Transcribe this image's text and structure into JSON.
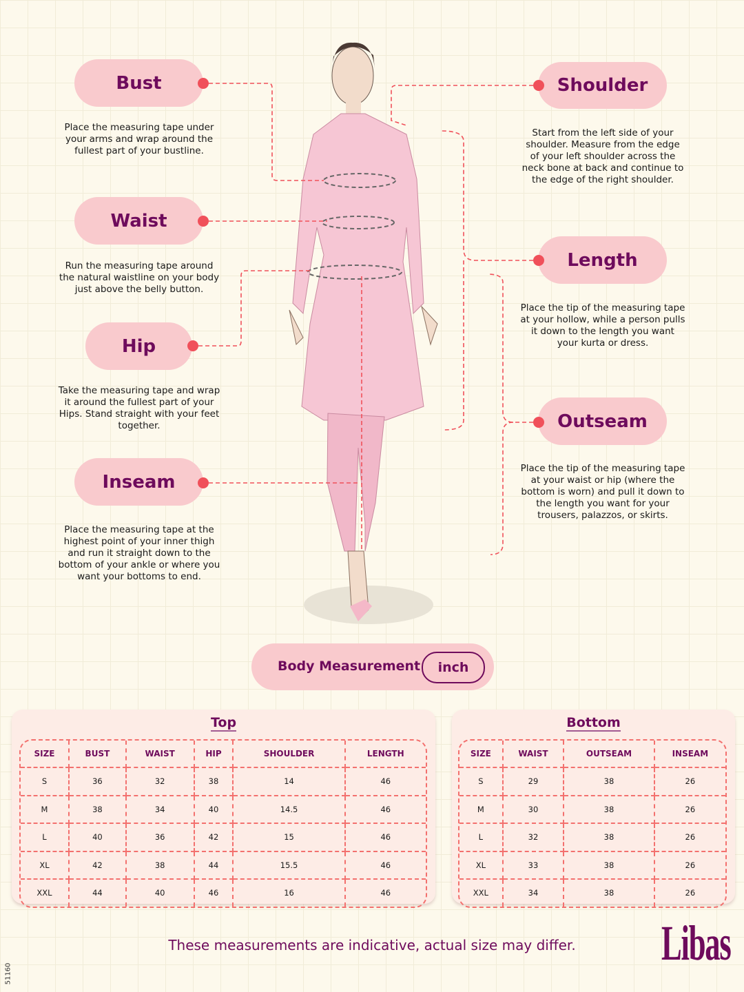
{
  "measurements": {
    "bust": {
      "label": "Bust",
      "desc": "Place the measuring tape under your arms and wrap around the fullest part of your bustline."
    },
    "waist": {
      "label": "Waist",
      "desc": "Run the measuring tape around the natural waistline on your body just above the belly button."
    },
    "hip": {
      "label": "Hip",
      "desc": "Take the measuring tape and wrap it around the fullest part of your Hips. Stand straight with your feet together."
    },
    "inseam": {
      "label": "Inseam",
      "desc": "Place the measuring tape at the highest point of your inner thigh and run it straight down to the bottom of your ankle or where you want your bottoms to end."
    },
    "shoulder": {
      "label": "Shoulder",
      "desc": "Start from the left side of your shoulder. Measure from the edge of your left shoulder across the neck bone at back and continue to the edge of the right shoulder."
    },
    "length": {
      "label": "Length",
      "desc": "Place the tip of the measuring tape at your hollow, while a person pulls it down to the length you want your kurta or dress."
    },
    "outseam": {
      "label": "Outseam",
      "desc": "Place the tip of the measuring tape at your waist or hip (where the bottom is worn) and pull it down to the length you want for your trousers, palazzos, or skirts."
    }
  },
  "body_measurement": {
    "label": "Body Measurement",
    "unit": "inch"
  },
  "top_table": {
    "title": "Top",
    "headers": [
      "SIZE",
      "BUST",
      "WAIST",
      "HIP",
      "SHOULDER",
      "LENGTH"
    ],
    "rows": [
      [
        "S",
        "36",
        "32",
        "38",
        "14",
        "46"
      ],
      [
        "M",
        "38",
        "34",
        "40",
        "14.5",
        "46"
      ],
      [
        "L",
        "40",
        "36",
        "42",
        "15",
        "46"
      ],
      [
        "XL",
        "42",
        "38",
        "44",
        "15.5",
        "46"
      ],
      [
        "XXL",
        "44",
        "40",
        "46",
        "16",
        "46"
      ]
    ]
  },
  "bottom_table": {
    "title": "Bottom",
    "headers": [
      "SIZE",
      "WAIST",
      "OUTSEAM",
      "INSEAM"
    ],
    "rows": [
      [
        "S",
        "29",
        "38",
        "26"
      ],
      [
        "M",
        "30",
        "38",
        "26"
      ],
      [
        "L",
        "32",
        "38",
        "26"
      ],
      [
        "XL",
        "33",
        "38",
        "26"
      ],
      [
        "XXL",
        "34",
        "38",
        "26"
      ]
    ]
  },
  "footer": "These measurements are indicative, actual size may differ.",
  "brand": "Libas",
  "code": "51160",
  "colors": {
    "accent": "#6e0b5c",
    "pill": "#f9cacd",
    "dash": "#f0505a",
    "background": "#fdf9ec"
  }
}
